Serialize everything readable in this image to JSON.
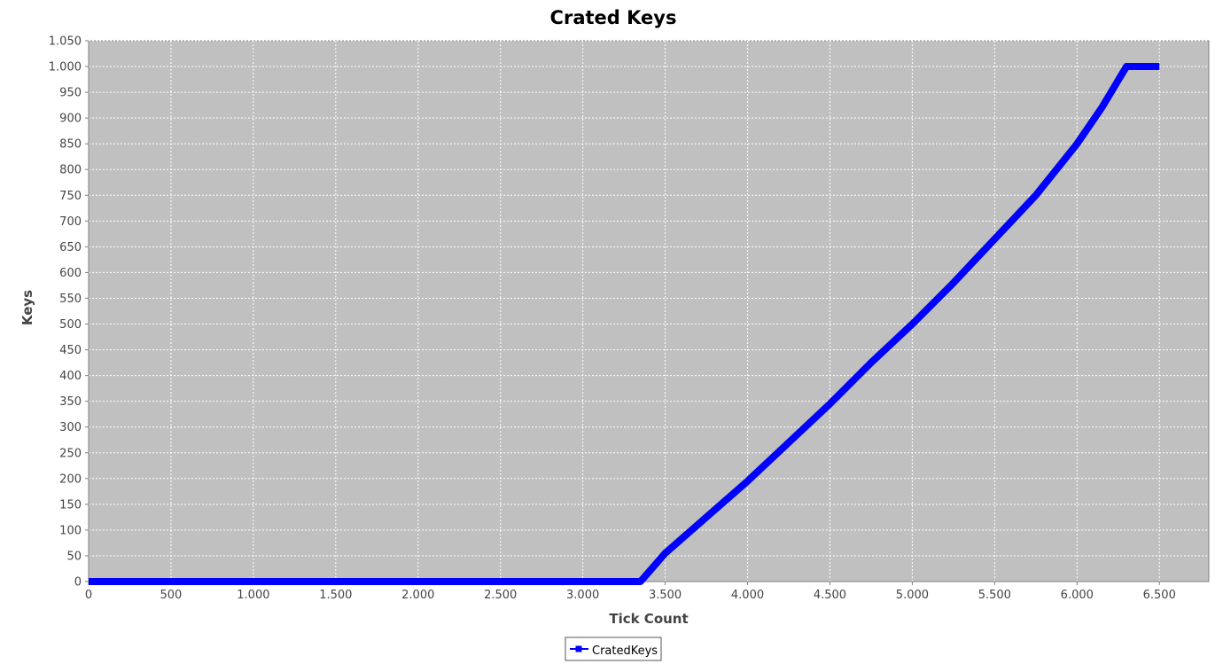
{
  "chart_data": {
    "type": "line",
    "title": "Crated Keys",
    "xlabel": "Tick Count",
    "ylabel": "Keys",
    "xlim": [
      0,
      6800
    ],
    "ylim": [
      0,
      1050
    ],
    "x_ticks": [
      0,
      500,
      1000,
      1500,
      2000,
      2500,
      3000,
      3500,
      4000,
      4500,
      5000,
      5500,
      6000,
      6500
    ],
    "x_tick_labels": [
      "0",
      "500",
      "1.000",
      "1.500",
      "2.000",
      "2.500",
      "3.000",
      "3.500",
      "4.000",
      "4.500",
      "5.000",
      "5.500",
      "6.000",
      "6.500"
    ],
    "y_ticks": [
      0,
      50,
      100,
      150,
      200,
      250,
      300,
      350,
      400,
      450,
      500,
      550,
      600,
      650,
      700,
      750,
      800,
      850,
      900,
      950,
      1000,
      1050
    ],
    "y_tick_labels": [
      "0",
      "50",
      "100",
      "150",
      "200",
      "250",
      "300",
      "350",
      "400",
      "450",
      "500",
      "550",
      "600",
      "650",
      "700",
      "750",
      "800",
      "850",
      "900",
      "950",
      "1.000",
      "1.050"
    ],
    "grid": true,
    "legend": "bottom",
    "colors": {
      "plot_background": "#c0c0c0",
      "series": "#0000ff",
      "grid": "#ffffff"
    },
    "series": [
      {
        "name": "CratedKeys",
        "x": [
          0,
          3350,
          3500,
          3750,
          4000,
          4250,
          4500,
          4750,
          5000,
          5250,
          5500,
          5750,
          6000,
          6150,
          6300,
          6500
        ],
        "y": [
          0,
          0,
          55,
          125,
          195,
          270,
          345,
          425,
          500,
          580,
          665,
          750,
          850,
          920,
          1000,
          1000
        ]
      }
    ]
  }
}
